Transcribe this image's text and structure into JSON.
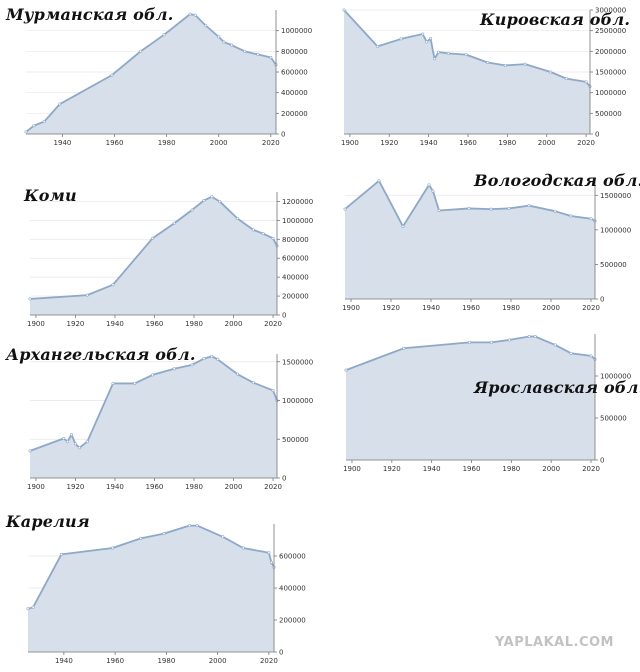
{
  "watermark": "YAPLAKAL.COM",
  "colors": {
    "fill": "#d6dfea",
    "line": "#8ea8c8",
    "axis": "#777777",
    "grid": "#e6e6e6"
  },
  "chart_data": [
    {
      "type": "area",
      "title": "Мурманская обл.",
      "xlim": [
        1926,
        2022
      ],
      "ylim": [
        0,
        1200000
      ],
      "xticks": [
        1940,
        1960,
        1980,
        2000,
        2020
      ],
      "yticks": [
        0,
        200000,
        400000,
        600000,
        800000,
        1000000
      ],
      "x": [
        1926,
        1929,
        1933,
        1939,
        1959,
        1970,
        1979,
        1989,
        1991,
        1995,
        2000,
        2002,
        2005,
        2010,
        2015,
        2020,
        2022
      ],
      "y": [
        20000,
        80000,
        120000,
        290000,
        570000,
        800000,
        960000,
        1160000,
        1150000,
        1050000,
        940000,
        890000,
        860000,
        800000,
        770000,
        740000,
        670000
      ]
    },
    {
      "type": "area",
      "title": "Кировская обл.",
      "xlim": [
        1897,
        2022
      ],
      "ylim": [
        0,
        3000000
      ],
      "xticks": [
        1900,
        1920,
        1940,
        1960,
        1980,
        2000,
        2020
      ],
      "yticks": [
        0,
        500000,
        1000000,
        1500000,
        2000000,
        2500000,
        3000000
      ],
      "x": [
        1897,
        1914,
        1926,
        1937,
        1939,
        1941,
        1943,
        1945,
        1950,
        1959,
        1970,
        1979,
        1989,
        2002,
        2010,
        2020,
        2022
      ],
      "y": [
        3000000,
        2120000,
        2300000,
        2420000,
        2230000,
        2310000,
        1820000,
        1980000,
        1950000,
        1920000,
        1730000,
        1660000,
        1690000,
        1500000,
        1340000,
        1260000,
        1150000
      ]
    },
    {
      "type": "area",
      "title": "Коми",
      "xlim": [
        1897,
        2022
      ],
      "ylim": [
        0,
        1300000
      ],
      "xticks": [
        1900,
        1920,
        1940,
        1960,
        1980,
        2000,
        2020
      ],
      "yticks": [
        0,
        200000,
        400000,
        600000,
        800000,
        1000000,
        1200000
      ],
      "x": [
        1897,
        1926,
        1939,
        1959,
        1970,
        1979,
        1985,
        1989,
        1993,
        2002,
        2010,
        2015,
        2020,
        2022
      ],
      "y": [
        170000,
        210000,
        320000,
        810000,
        970000,
        1110000,
        1210000,
        1250000,
        1200000,
        1020000,
        900000,
        860000,
        810000,
        730000
      ]
    },
    {
      "type": "area",
      "title": "Вологодская обл.",
      "xlim": [
        1897,
        2022
      ],
      "ylim": [
        0,
        1750000
      ],
      "xticks": [
        1900,
        1920,
        1940,
        1960,
        1980,
        2000,
        2020
      ],
      "yticks": [
        0,
        500000,
        1000000,
        1500000
      ],
      "x": [
        1897,
        1914,
        1926,
        1939,
        1941,
        1944,
        1959,
        1970,
        1979,
        1989,
        2002,
        2010,
        2020,
        2022
      ],
      "y": [
        1300000,
        1710000,
        1050000,
        1650000,
        1560000,
        1280000,
        1310000,
        1300000,
        1310000,
        1350000,
        1270000,
        1200000,
        1160000,
        1130000
      ]
    },
    {
      "type": "area",
      "title": "Архангельская обл.",
      "xlim": [
        1897,
        2022
      ],
      "ylim": [
        0,
        1600000
      ],
      "xticks": [
        1900,
        1920,
        1940,
        1960,
        1980,
        2000,
        2020
      ],
      "yticks": [
        0,
        500000,
        1000000,
        1500000
      ],
      "x": [
        1897,
        1914,
        1916,
        1918,
        1920,
        1922,
        1926,
        1939,
        1950,
        1959,
        1970,
        1979,
        1985,
        1989,
        1992,
        2002,
        2010,
        2020,
        2022
      ],
      "y": [
        350000,
        510000,
        470000,
        560000,
        440000,
        390000,
        470000,
        1220000,
        1220000,
        1330000,
        1410000,
        1460000,
        1540000,
        1570000,
        1530000,
        1340000,
        1230000,
        1130000,
        1000000
      ]
    },
    {
      "type": "area",
      "title": "Ярославская обл.",
      "xlim": [
        1897,
        2022
      ],
      "ylim": [
        0,
        1500000
      ],
      "xticks": [
        1900,
        1920,
        1940,
        1960,
        1980,
        2000,
        2020
      ],
      "yticks": [
        0,
        500000,
        1000000
      ],
      "x": [
        1897,
        1926,
        1959,
        1970,
        1979,
        1989,
        1992,
        2002,
        2010,
        2020,
        2022
      ],
      "y": [
        1070000,
        1330000,
        1400000,
        1400000,
        1430000,
        1470000,
        1470000,
        1370000,
        1270000,
        1240000,
        1200000
      ]
    },
    {
      "type": "area",
      "title": "Карелия",
      "xlim": [
        1926,
        2022
      ],
      "ylim": [
        0,
        800000
      ],
      "xticks": [
        1940,
        1960,
        1980,
        2000,
        2020
      ],
      "yticks": [
        0,
        200000,
        400000,
        600000
      ],
      "x": [
        1926,
        1928,
        1939,
        1959,
        1970,
        1979,
        1989,
        1992,
        2002,
        2010,
        2020,
        2021,
        2022
      ],
      "y": [
        270000,
        280000,
        610000,
        650000,
        710000,
        740000,
        790000,
        790000,
        720000,
        650000,
        620000,
        560000,
        530000
      ]
    }
  ]
}
